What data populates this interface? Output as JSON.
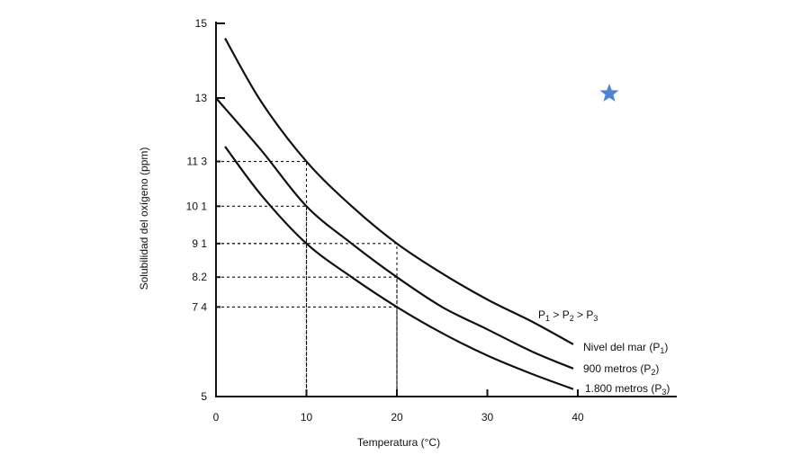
{
  "chart_data": {
    "type": "line",
    "xlabel": "Temperatura (°C)",
    "ylabel": "Solubilidad del oxígeno (ppm)",
    "xlim": [
      0,
      40
    ],
    "ylim": [
      5,
      15
    ],
    "x_ticks": [
      {
        "value": 0,
        "label": "0"
      },
      {
        "value": 10,
        "label": "10"
      },
      {
        "value": 20,
        "label": "20"
      },
      {
        "value": 30,
        "label": "30"
      },
      {
        "value": 40,
        "label": "40"
      }
    ],
    "y_ticks": [
      {
        "value": 5,
        "label": "5"
      },
      {
        "value": 7.4,
        "label": "7 4"
      },
      {
        "value": 8.2,
        "label": "8.2"
      },
      {
        "value": 9.1,
        "label": "9 1"
      },
      {
        "value": 10.1,
        "label": "10 1"
      },
      {
        "value": 11.3,
        "label": "11 3"
      },
      {
        "value": 13,
        "label": "13"
      },
      {
        "value": 15,
        "label": "15"
      }
    ],
    "relation_label": {
      "p": "P",
      "s1": "1",
      "s2": "2",
      "s3": "3",
      "gt": ">"
    },
    "series": [
      {
        "label": "Nivel del mar (P",
        "sub": "1",
        "close": ")",
        "x": [
          1,
          5,
          10,
          15,
          20,
          25,
          30,
          35,
          39.5
        ],
        "y": [
          14.6,
          12.9,
          11.3,
          10.1,
          9.1,
          8.3,
          7.6,
          7.0,
          6.4
        ]
      },
      {
        "label": "900 metros (P",
        "sub": "2",
        "close": ")",
        "x": [
          0,
          5,
          10,
          15,
          20,
          25,
          30,
          35,
          39.5
        ],
        "y": [
          13.0,
          11.6,
          10.1,
          9.1,
          8.2,
          7.4,
          6.8,
          6.2,
          5.75
        ]
      },
      {
        "label": "1.800 metros (P",
        "sub": "3",
        "close": ")",
        "x": [
          1,
          5,
          10,
          15,
          20,
          25,
          30,
          35,
          39.5
        ],
        "y": [
          11.7,
          10.4,
          9.1,
          8.2,
          7.4,
          6.7,
          6.1,
          5.6,
          5.2
        ]
      }
    ],
    "reference_lines": [
      {
        "x": 10,
        "y": 11.3
      },
      {
        "x": 10,
        "y": 10.1
      },
      {
        "x": 10,
        "y": 9.1
      },
      {
        "x": 20,
        "y": 9.1
      },
      {
        "x": 20,
        "y": 8.2
      },
      {
        "x": 20,
        "y": 7.4
      }
    ],
    "star_color": "#4a86d0"
  }
}
